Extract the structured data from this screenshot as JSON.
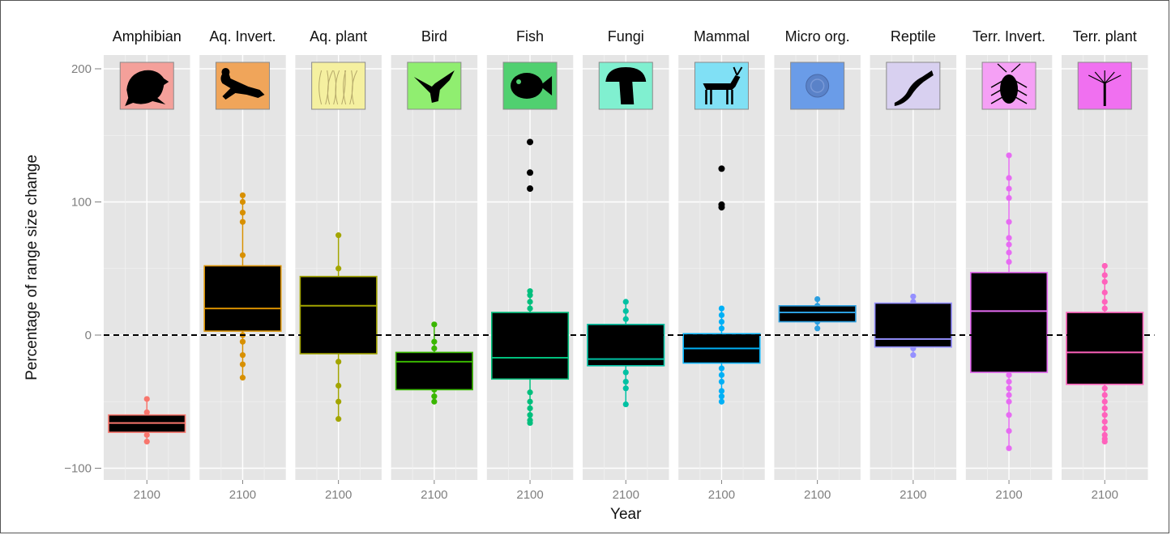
{
  "chart_data": {
    "type": "box",
    "title": "",
    "xlabel": "Year",
    "ylabel": "Percentage of range size change",
    "ylim": [
      -110,
      205
    ],
    "yticks": [
      -100,
      0,
      100,
      200
    ],
    "x_tick_label": "2100",
    "reference_line": 0,
    "grid": true,
    "legend": "none",
    "panels": [
      {
        "name": "Amphibian",
        "color": "#F8766D",
        "icon": "frog-icon",
        "icon_bg": "#F4A09A",
        "box": {
          "q1": -73,
          "median": -66,
          "q3": -60,
          "whisker_low": -80,
          "whisker_high": -48
        },
        "points": [
          -48,
          -58,
          -62,
          -66,
          -70,
          -75,
          -80
        ]
      },
      {
        "name": "Aq. Invert.",
        "color": "#D89000",
        "icon": "lobster-icon",
        "icon_bg": "#F0A55A",
        "box": {
          "q1": 3,
          "median": 20,
          "q3": 52,
          "whisker_low": -32,
          "whisker_high": 105
        },
        "points": [
          105,
          100,
          92,
          85,
          60,
          45,
          30,
          10,
          0,
          -5,
          -15,
          -22,
          -32
        ]
      },
      {
        "name": "Aq. plant",
        "color": "#A3A500",
        "icon": "plant-icon",
        "icon_bg": "#F5F0A0",
        "box": {
          "q1": -14,
          "median": 22,
          "q3": 44,
          "whisker_low": -63,
          "whisker_high": 75
        },
        "points": [
          75,
          50,
          38,
          20,
          -20,
          -38,
          -50,
          -63
        ]
      },
      {
        "name": "Bird",
        "color": "#39B600",
        "icon": "bird-icon",
        "icon_bg": "#90EE70",
        "box": {
          "q1": -41,
          "median": -20,
          "q3": -13,
          "whisker_low": -50,
          "whisker_high": 8
        },
        "points": [
          8,
          -5,
          -10,
          -30,
          -41,
          -46,
          -50
        ]
      },
      {
        "name": "Fish",
        "color": "#00BF7D",
        "icon": "fish-icon",
        "icon_bg": "#50D070",
        "box": {
          "q1": -33,
          "median": -17,
          "q3": 17,
          "whisker_low": -66,
          "whisker_high": 33
        },
        "points": [
          33,
          30,
          25,
          20,
          -43,
          -50,
          -55,
          -60,
          -64,
          -66
        ],
        "outliers": [
          145,
          122,
          110
        ]
      },
      {
        "name": "Fungi",
        "color": "#00C1A3",
        "icon": "mushroom-icon",
        "icon_bg": "#80F0D0",
        "box": {
          "q1": -23,
          "median": -18,
          "q3": 8,
          "whisker_low": -52,
          "whisker_high": 25
        },
        "points": [
          25,
          18,
          12,
          -5,
          -28,
          -35,
          -40,
          -52
        ]
      },
      {
        "name": "Mammal",
        "color": "#00B0F6",
        "icon": "deer-icon",
        "icon_bg": "#80E0F5",
        "box": {
          "q1": -21,
          "median": -10,
          "q3": 1,
          "whisker_low": -50,
          "whisker_high": 20
        },
        "points": [
          20,
          15,
          10,
          5,
          -25,
          -30,
          -35,
          -42,
          -46,
          -50
        ],
        "outliers": [
          125,
          98,
          96
        ]
      },
      {
        "name": "Micro org.",
        "color": "#2C9FE0",
        "icon": "microbe-icon",
        "icon_bg": "#6A9CE8",
        "box": {
          "q1": 10,
          "median": 17,
          "q3": 22,
          "whisker_low": 5,
          "whisker_high": 27
        },
        "points": [
          27,
          22,
          10,
          5
        ]
      },
      {
        "name": "Reptile",
        "color": "#9590FF",
        "icon": "lizard-icon",
        "icon_bg": "#D8D0F0",
        "box": {
          "q1": -9,
          "median": -3,
          "q3": 24,
          "whisker_low": -15,
          "whisker_high": 29
        },
        "points": [
          29,
          25,
          -10,
          -15
        ]
      },
      {
        "name": "Terr. Invert.",
        "color": "#E76BF3",
        "icon": "cockroach-icon",
        "icon_bg": "#F5A0F5",
        "box": {
          "q1": -28,
          "median": 18,
          "q3": 47,
          "whisker_low": -85,
          "whisker_high": 135
        },
        "points": [
          135,
          118,
          110,
          103,
          85,
          73,
          68,
          62,
          55,
          -30,
          -35,
          -40,
          -45,
          -50,
          -60,
          -72,
          -85
        ]
      },
      {
        "name": "Terr. plant",
        "color": "#FF62BC",
        "icon": "tree-icon",
        "icon_bg": "#F070F0",
        "box": {
          "q1": -37,
          "median": -13,
          "q3": 17,
          "whisker_low": -80,
          "whisker_high": 52
        },
        "points": [
          52,
          45,
          40,
          32,
          25,
          20,
          -40,
          -45,
          -50,
          -55,
          -60,
          -65,
          -70,
          -75,
          -78,
          -80
        ]
      }
    ]
  }
}
